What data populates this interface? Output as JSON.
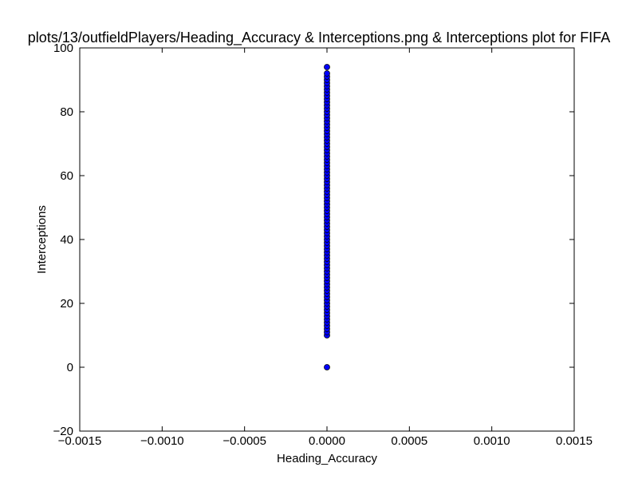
{
  "chart_data": {
    "type": "scatter",
    "title": "plots/13/outfieldPlayers/Heading_Accuracy & Interceptions.png & Interceptions plot for FIFA",
    "xlabel": "Heading_Accuracy",
    "ylabel": "Interceptions",
    "xlim": [
      -0.0015,
      0.0015
    ],
    "ylim": [
      -20,
      100
    ],
    "xticks": [
      -0.0015,
      -0.001,
      -0.0005,
      0,
      0.0005,
      0.001,
      0.0015
    ],
    "xtick_labels": [
      "−0.0015",
      "−0.0010",
      "−0.0005",
      "0.0000",
      "0.0005",
      "0.0010",
      "0.0015"
    ],
    "yticks": [
      -20,
      0,
      20,
      40,
      60,
      80,
      100
    ],
    "ytick_labels": [
      "−20",
      "0",
      "20",
      "40",
      "60",
      "80",
      "100"
    ],
    "grid": false,
    "marker_color": "#0000ff",
    "marker_edge_color": "#000000",
    "series": [
      {
        "x": [
          0,
          0,
          0,
          0,
          0,
          0,
          0,
          0,
          0,
          0,
          0,
          0,
          0,
          0,
          0,
          0,
          0,
          0,
          0,
          0,
          0,
          0,
          0,
          0,
          0,
          0,
          0,
          0,
          0,
          0,
          0,
          0,
          0,
          0,
          0,
          0,
          0,
          0,
          0,
          0,
          0,
          0,
          0,
          0,
          0,
          0,
          0,
          0,
          0,
          0,
          0,
          0,
          0,
          0,
          0,
          0,
          0,
          0,
          0,
          0,
          0,
          0,
          0,
          0,
          0,
          0,
          0,
          0,
          0,
          0,
          0,
          0,
          0,
          0,
          0,
          0,
          0,
          0,
          0,
          0,
          0,
          0,
          0,
          0,
          0
        ],
        "y": [
          0,
          10,
          11,
          12,
          13,
          14,
          15,
          16,
          17,
          18,
          19,
          20,
          21,
          22,
          23,
          24,
          25,
          26,
          27,
          28,
          29,
          30,
          31,
          32,
          33,
          34,
          35,
          36,
          37,
          38,
          39,
          40,
          41,
          42,
          43,
          44,
          45,
          46,
          47,
          48,
          49,
          50,
          51,
          52,
          53,
          54,
          55,
          56,
          57,
          58,
          59,
          60,
          61,
          62,
          63,
          64,
          65,
          66,
          67,
          68,
          69,
          70,
          71,
          72,
          73,
          74,
          75,
          76,
          77,
          78,
          79,
          80,
          81,
          82,
          83,
          84,
          85,
          86,
          87,
          88,
          89,
          90,
          91,
          92,
          94
        ]
      }
    ]
  }
}
